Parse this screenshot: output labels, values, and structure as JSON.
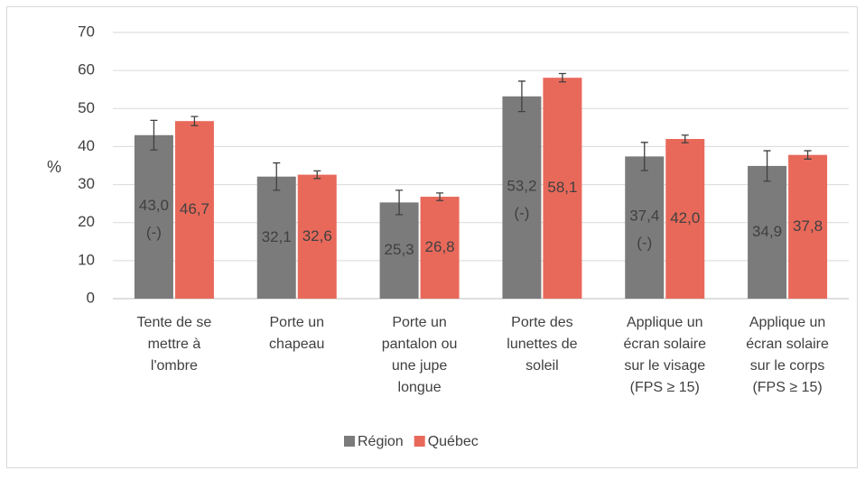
{
  "chart_data": {
    "type": "bar",
    "categories": [
      [
        "Tente de se",
        "mettre à",
        "l'ombre"
      ],
      [
        "Porte un",
        "chapeau"
      ],
      [
        "Porte un",
        "pantalon ou",
        "une jupe",
        "longue"
      ],
      [
        "Porte des",
        "lunettes de",
        "soleil"
      ],
      [
        "Applique un",
        "écran solaire",
        "sur le visage",
        "(FPS ≥ 15)"
      ],
      [
        "Applique un",
        "écran solaire",
        "sur le corps",
        "(FPS ≥ 15)"
      ]
    ],
    "ylabel": "%",
    "ylim": [
      0,
      70
    ],
    "yticks": [
      0,
      10,
      20,
      30,
      40,
      50,
      60,
      70
    ],
    "grid": true,
    "legend": "bottom",
    "series": [
      {
        "name": "Région",
        "color": "#7b7b7b",
        "values": [
          43.0,
          32.1,
          25.3,
          53.2,
          37.4,
          34.9
        ],
        "value_labels": [
          "43,0",
          "32,1",
          "25,3",
          "53,2",
          "37,4",
          "34,9"
        ],
        "annotations": [
          "(-)",
          null,
          null,
          "(-)",
          "(-)",
          null
        ],
        "errors": [
          3.9,
          3.6,
          3.2,
          4.0,
          3.7,
          4.0
        ]
      },
      {
        "name": "Québec",
        "color": "#e8695a",
        "values": [
          46.7,
          32.6,
          26.8,
          58.1,
          42.0,
          37.8
        ],
        "value_labels": [
          "46,7",
          "32,6",
          "26,8",
          "58,1",
          "42,0",
          "37,8"
        ],
        "annotations": [
          null,
          null,
          null,
          null,
          null,
          null
        ],
        "errors": [
          1.2,
          1.0,
          1.0,
          1.1,
          1.0,
          1.1
        ]
      }
    ]
  }
}
